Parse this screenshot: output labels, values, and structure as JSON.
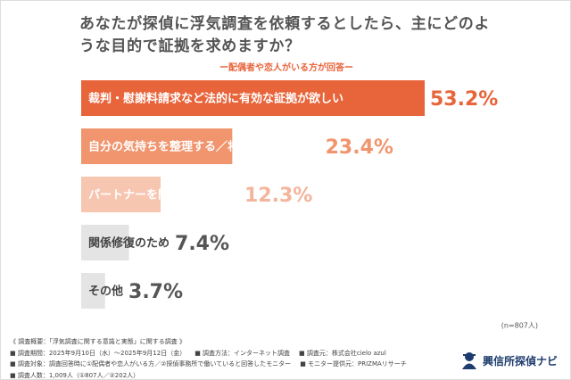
{
  "chart_data": {
    "type": "bar",
    "orientation": "horizontal",
    "title": "あなたが探偵に浮気調査を依頼するとしたら、主にどのような目的で証拠を求めますか？",
    "subtitle": "ー配偶者や恋人がいる方が回答ー",
    "categories": [
      "裁判・慰謝料請求など法的に有効な証拠が欲しい",
      "自分の気持ちを整理する／将来に備えるため",
      "パートナーを問い詰めるため",
      "関係修復のため",
      "その他"
    ],
    "values": [
      53.2,
      23.4,
      12.3,
      7.4,
      3.7
    ],
    "value_labels": [
      "53.2%",
      "23.4%",
      "12.3%",
      "7.4%",
      "3.7%"
    ],
    "colors": [
      "#e8643a",
      "#f0956e",
      "#f6c6b1",
      "#e4e4e4",
      "#e4e4e4"
    ],
    "label_colors": [
      "#ffffff",
      "#ffffff",
      "#ffffff",
      "#444444",
      "#444444"
    ],
    "value_label_colors": [
      "#e8643a",
      "#f0956e",
      "#f3b59b",
      "#555555",
      "#555555"
    ],
    "note": "(n=807人)"
  },
  "footer": {
    "notes": [
      [
        "《 調査概要：「浮気調査に関する意識と実態」に関する調査 》"
      ],
      [
        "■ 調査期間：2025年9月10日（水）〜2025年9月12日（金）",
        "■ 調査方法：インターネット調査",
        "■ 調査元：株式会社cielo azul"
      ],
      [
        "■ 調査対象：調査回答時に①配偶者や恋人がいる方／②探偵事務所で働いていると回答したモニター",
        "■ モニター提供元：PRIZMAリサーチ"
      ],
      [
        "■ 調査人数：1,009人（①807人／②202人）"
      ]
    ],
    "brand": "興信所探偵ナビ"
  }
}
